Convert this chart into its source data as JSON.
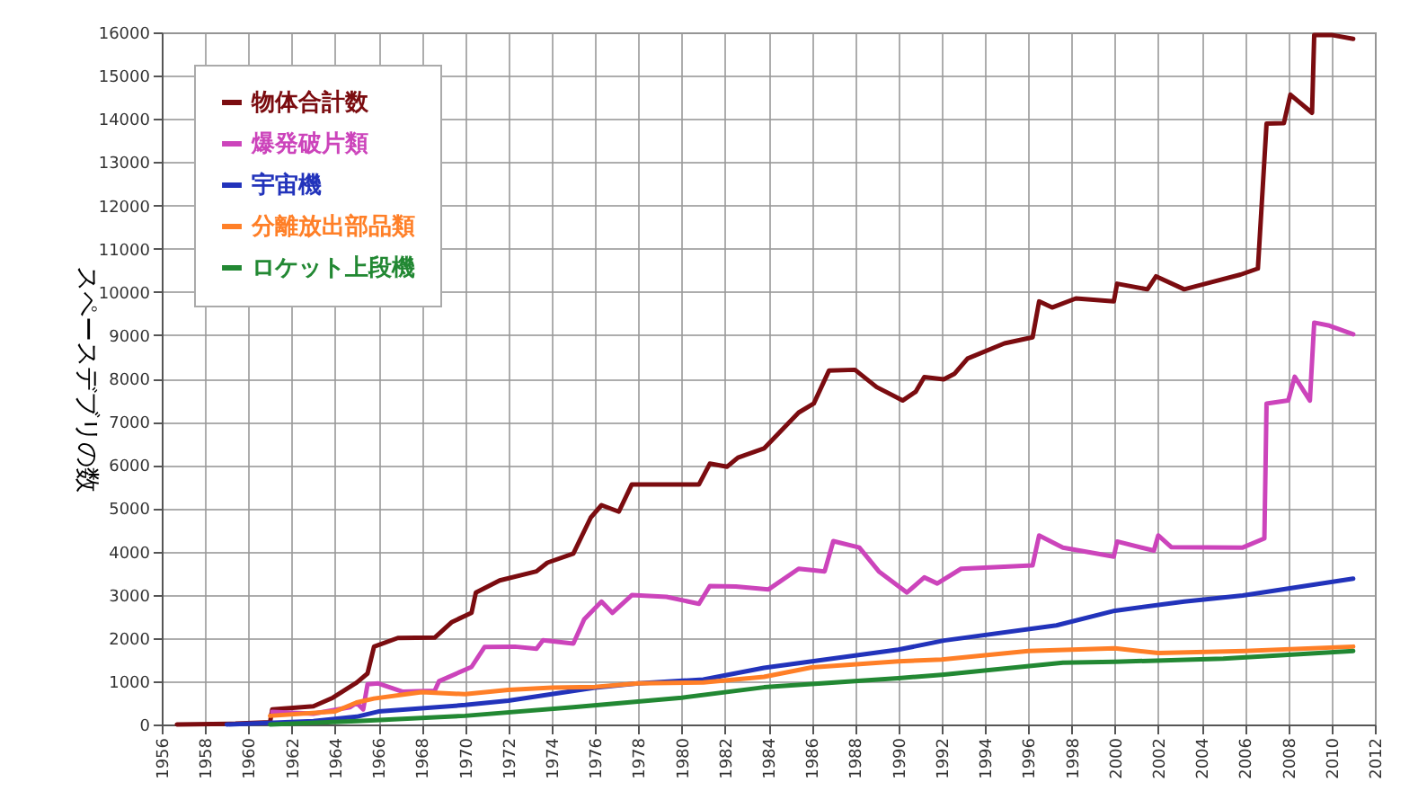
{
  "chart_data": {
    "type": "line",
    "ylabel": "スペースデブリの数",
    "xlim": [
      1956,
      2012
    ],
    "ylim": [
      0,
      16000
    ],
    "xticks": [
      1956,
      1958,
      1960,
      1962,
      1964,
      1966,
      1968,
      1970,
      1972,
      1974,
      1976,
      1978,
      1980,
      1982,
      1984,
      1986,
      1988,
      1990,
      1992,
      1994,
      1996,
      1998,
      2000,
      2002,
      2004,
      2006,
      2008,
      2010,
      2012
    ],
    "yticks": [
      0,
      1000,
      2000,
      3000,
      4000,
      5000,
      6000,
      7000,
      8000,
      9000,
      10000,
      11000,
      12000,
      13000,
      14000,
      15000,
      16000
    ],
    "grid": true,
    "legend": "top left",
    "line_style": "solid",
    "marker": "none",
    "series": [
      {
        "name": "物体合計数",
        "color": "#7b0c10",
        "x": [
          1956.7,
          1959.4,
          1961,
          1961.1,
          1963,
          1963.9,
          1965,
          1965.5,
          1965.8,
          1966.9,
          1968.6,
          1969.4,
          1970.3,
          1970.5,
          1971.6,
          1973.3,
          1973.8,
          1975,
          1975.8,
          1976.3,
          1977.1,
          1977.7,
          1980.8,
          1981.3,
          1982.1,
          1982.6,
          1983.8,
          1985.4,
          1986.1,
          1986.8,
          1988,
          1989,
          1990.2,
          1990.8,
          1991.2,
          1992.1,
          1992.6,
          1993.2,
          1994.9,
          1996.2,
          1996.5,
          1997.1,
          1998.2,
          1999.95,
          2000.1,
          2001.5,
          2001.9,
          2003.2,
          2004.5,
          2005.8,
          2006.6,
          2007,
          2007.8,
          2008.1,
          2009.1,
          2009.2,
          2010,
          2011
        ],
        "values": [
          0,
          20,
          50,
          350,
          420,
          620,
          970,
          1180,
          1800,
          2000,
          2010,
          2370,
          2580,
          3050,
          3330,
          3540,
          3740,
          3950,
          4780,
          5070,
          4920,
          5550,
          5550,
          6030,
          5960,
          6170,
          6380,
          7210,
          7420,
          8180,
          8200,
          7800,
          7490,
          7690,
          8030,
          7980,
          8110,
          8460,
          8810,
          8950,
          9780,
          9640,
          9850,
          9780,
          10190,
          10060,
          10360,
          10060,
          10230,
          10400,
          10540,
          13890,
          13900,
          14560,
          14140,
          15940,
          15940,
          15850
        ]
      },
      {
        "name": "爆発破片類",
        "color": "#cc44bb",
        "x": [
          1961.1,
          1963,
          1964.7,
          1965,
          1965.3,
          1965.5,
          1966,
          1967.1,
          1968.6,
          1968.8,
          1970.3,
          1970.9,
          1972.3,
          1973.3,
          1973.6,
          1975,
          1975.5,
          1976.3,
          1976.8,
          1977.7,
          1979.3,
          1980.8,
          1981.3,
          1982.5,
          1984,
          1985.4,
          1986.6,
          1987,
          1988.2,
          1989.1,
          1990.4,
          1991.2,
          1991.8,
          1992.9,
          1996.2,
          1996.5,
          1997.6,
          1999.95,
          2000.1,
          2001.8,
          2002,
          2002.6,
          2005.9,
          2006.9,
          2007,
          2008,
          2008.3,
          2009,
          2009.2,
          2009.9,
          2011
        ],
        "values": [
          290,
          250,
          400,
          500,
          350,
          930,
          950,
          760,
          780,
          1000,
          1330,
          1790,
          1800,
          1750,
          1950,
          1870,
          2430,
          2840,
          2580,
          2990,
          2950,
          2790,
          3200,
          3190,
          3120,
          3600,
          3540,
          4240,
          4090,
          3540,
          3050,
          3400,
          3260,
          3600,
          3680,
          4370,
          4090,
          3880,
          4230,
          4020,
          4370,
          4100,
          4090,
          4300,
          7420,
          7490,
          8040,
          7490,
          9290,
          9220,
          9020
        ]
      },
      {
        "name": "宇宙機",
        "color": "#2233bb",
        "x": [
          1959,
          1963,
          1965,
          1966,
          1970,
          1972,
          1974,
          1976,
          1978,
          1981,
          1983.8,
          1990,
          1992.1,
          1997.3,
          2000,
          2003.2,
          2005.9,
          2011
        ],
        "values": [
          0,
          80,
          180,
          300,
          450,
          550,
          700,
          850,
          950,
          1040,
          1310,
          1730,
          1940,
          2290,
          2630,
          2840,
          2980,
          3370
        ]
      },
      {
        "name": "分離放出部品類",
        "color": "#ff7f27",
        "x": [
          1961,
          1964,
          1965,
          1965.8,
          1968,
          1970,
          1972,
          1974,
          1976,
          1978,
          1981,
          1983.8,
          1986,
          1990,
          1992,
          1996,
          2000,
          2002,
          2006,
          2011
        ],
        "values": [
          200,
          300,
          510,
          600,
          750,
          700,
          800,
          850,
          870,
          950,
          970,
          1100,
          1320,
          1460,
          1500,
          1700,
          1760,
          1650,
          1700,
          1800
        ]
      },
      {
        "name": "ロケット上段機",
        "color": "#228833",
        "x": [
          1961,
          1965,
          1970,
          1975,
          1980,
          1983.8,
          1990,
          1992,
          1997.6,
          2000,
          2005,
          2011
        ],
        "values": [
          0,
          80,
          200,
          400,
          620,
          860,
          1070,
          1150,
          1430,
          1450,
          1520,
          1700
        ]
      }
    ]
  }
}
